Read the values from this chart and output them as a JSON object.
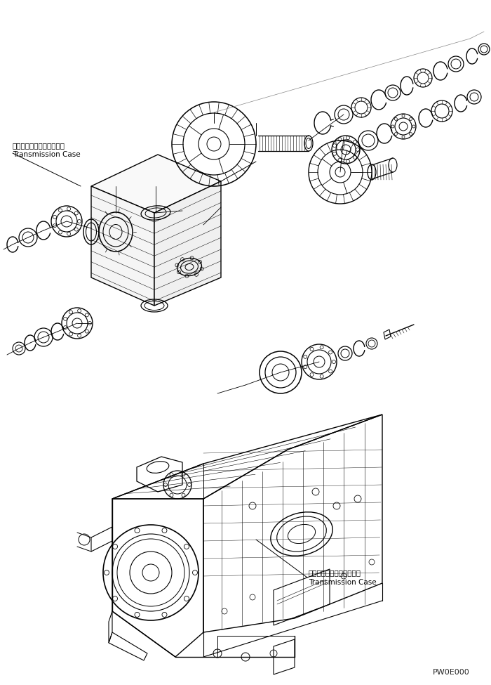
{
  "bg_color": "#ffffff",
  "line_color": "#000000",
  "text_color": "#000000",
  "label1_jp": "トランスミッションケース",
  "label1_en": "Transmission Case",
  "label2_jp": "トランスミッションケース",
  "label2_en": "Transmission Case",
  "watermark": "PW0E000",
  "fig_width": 7.0,
  "fig_height": 9.75,
  "dpi": 100
}
